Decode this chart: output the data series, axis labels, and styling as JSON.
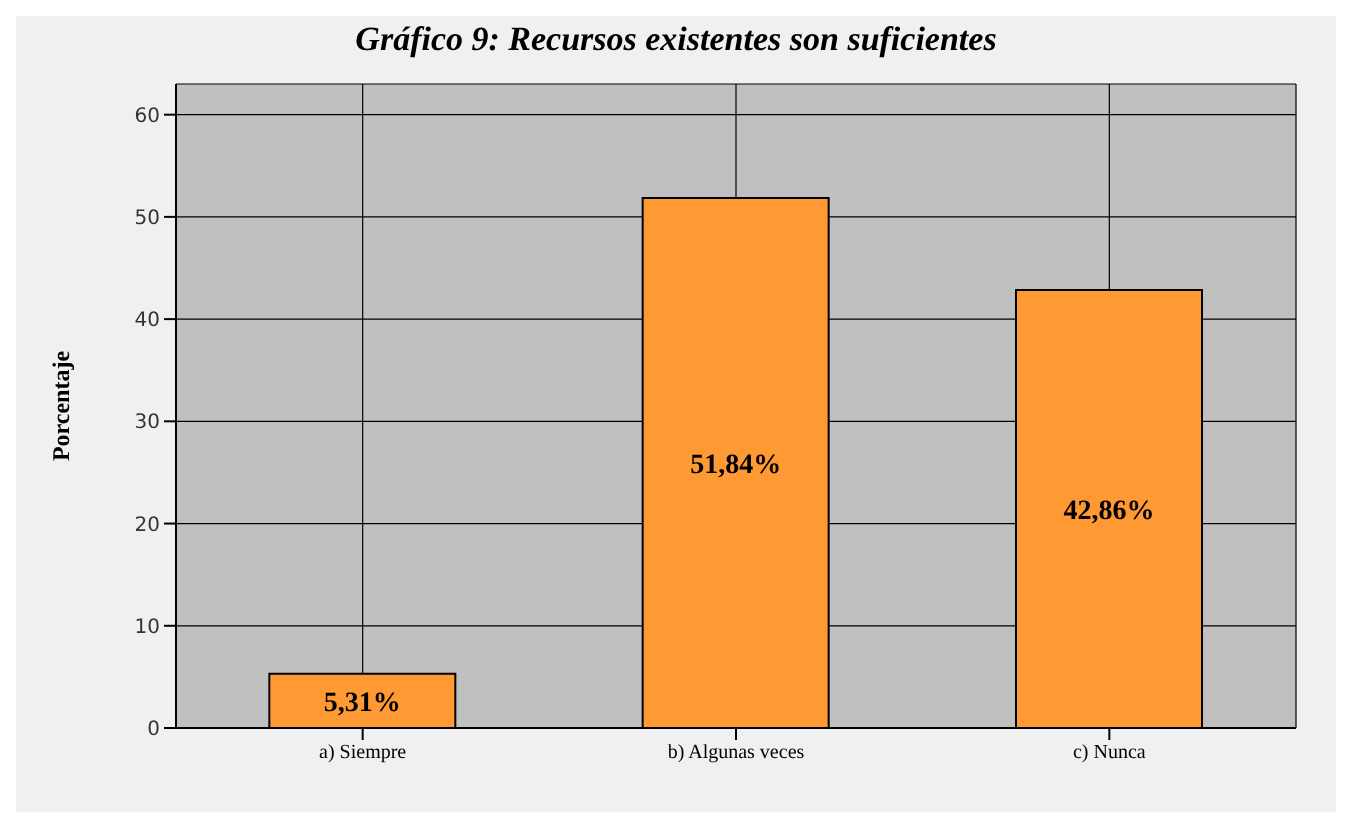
{
  "chart_data": {
    "type": "bar",
    "title": "Gráfico 9: Recursos existentes son suficientes",
    "ylabel": "Porcentaje",
    "categories": [
      "a) Siempre",
      "b) Algunas veces",
      "c) Nunca"
    ],
    "values": [
      5.31,
      51.84,
      42.86
    ],
    "value_labels": [
      "5,31%",
      "51,84%",
      "42,86%"
    ],
    "color": "#ff9933",
    "ylim": [
      0,
      63
    ],
    "yticks": [
      0,
      10,
      20,
      30,
      40,
      50,
      60
    ],
    "grid": true
  }
}
